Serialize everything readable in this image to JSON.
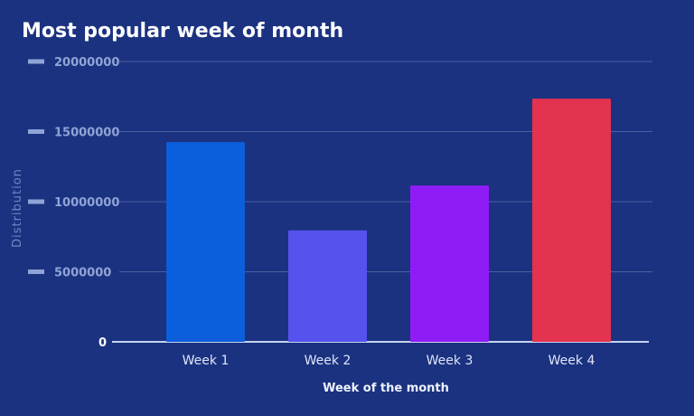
{
  "chart_data": {
    "type": "bar",
    "title": "Most popular week of month",
    "xlabel": "Week of the month",
    "ylabel": "Distribution",
    "categories": [
      "Week 1",
      "Week 2",
      "Week 3",
      "Week 4"
    ],
    "values": [
      14250000,
      7950000,
      11150000,
      17350000
    ],
    "colors": [
      "#0b5fdc",
      "#5552ee",
      "#8f1cf7",
      "#e3334f"
    ],
    "ylim": [
      0,
      20000000
    ],
    "yticks": [
      0,
      5000000,
      10000000,
      15000000,
      20000000
    ],
    "ytick_labels": [
      "0",
      "5000000",
      "10000000",
      "15000000",
      "20000000"
    ],
    "grid": true,
    "background": "#1b3280"
  }
}
